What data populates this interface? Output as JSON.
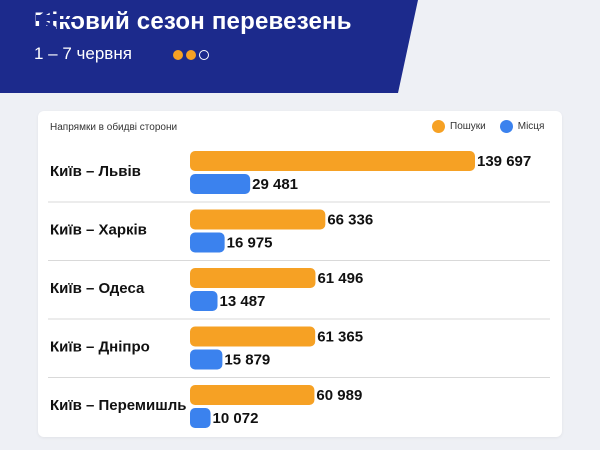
{
  "header": {
    "title": "Піковий сезон перевезень",
    "subtitle": "1 – 7 червня",
    "logo_text": "УЗ",
    "bg_color": "#1c2a8c"
  },
  "card": {
    "label": "Напрямки в обидві сторони"
  },
  "colors": {
    "searches": "#f6a124",
    "seats": "#3b82ee",
    "divider": "#d9d9d9"
  },
  "chart_data": {
    "type": "bar",
    "orientation": "horizontal",
    "categories": [
      "Київ – Львів",
      "Київ – Харків",
      "Київ – Одеса",
      "Київ – Дніпро",
      "Київ – Перемишль"
    ],
    "series": [
      {
        "name": "Пошуки",
        "values": [
          139697,
          66336,
          61496,
          61365,
          60989
        ],
        "labels": [
          "139 697",
          "66 336",
          "61 496",
          "61 365",
          "60 989"
        ]
      },
      {
        "name": "Місця",
        "values": [
          29481,
          16975,
          13487,
          15879,
          10072
        ],
        "labels": [
          "29 481",
          "16 975",
          "13 487",
          "15 879",
          "10 072"
        ]
      }
    ],
    "legend": "top-right",
    "grid": false
  }
}
